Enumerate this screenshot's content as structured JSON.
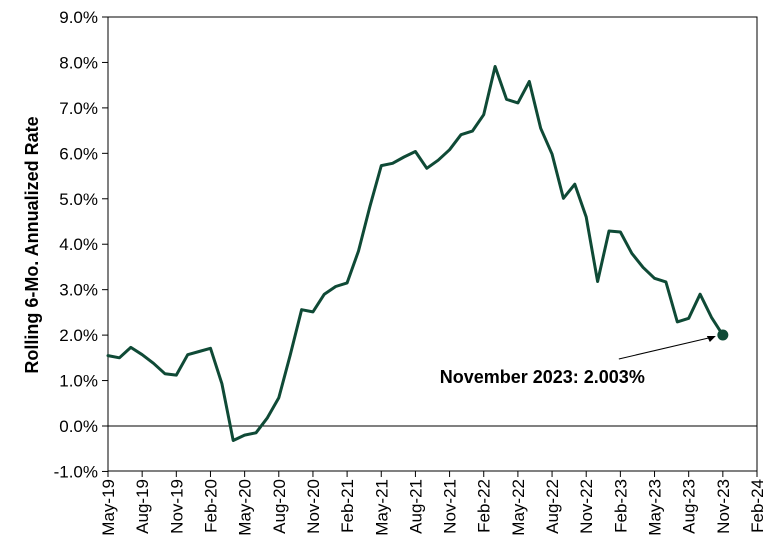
{
  "chart_data": {
    "type": "line",
    "title": "",
    "ylabel": "Rolling 6-Mo. Annualized Rate",
    "xlabel": "",
    "ylim": [
      -1.0,
      9.0
    ],
    "yticks": [
      -1.0,
      0.0,
      1.0,
      2.0,
      3.0,
      4.0,
      5.0,
      6.0,
      7.0,
      8.0,
      9.0
    ],
    "ytick_labels": [
      "-1.0%",
      "0.0%",
      "1.0%",
      "2.0%",
      "3.0%",
      "4.0%",
      "5.0%",
      "6.0%",
      "7.0%",
      "8.0%",
      "9.0%"
    ],
    "xlim": [
      "May-19",
      "Feb-24"
    ],
    "xtick_labels": [
      "May-19",
      "Aug-19",
      "Nov-19",
      "Feb-20",
      "May-20",
      "Aug-20",
      "Nov-20",
      "Feb-21",
      "May-21",
      "Aug-21",
      "Nov-21",
      "Feb-22",
      "May-22",
      "Aug-22",
      "Nov-22",
      "Feb-23",
      "May-23",
      "Aug-23",
      "Nov-23",
      "Feb-24"
    ],
    "grid": false,
    "legend": "none",
    "line_color": "#0f4a36",
    "series": [
      {
        "x": [
          "May-19",
          "Jun-19",
          "Jul-19",
          "Aug-19",
          "Sep-19",
          "Oct-19",
          "Nov-19",
          "Dec-19",
          "Jan-20",
          "Feb-20",
          "Mar-20",
          "Apr-20",
          "May-20",
          "Jun-20",
          "Jul-20",
          "Aug-20",
          "Sep-20",
          "Oct-20",
          "Nov-20",
          "Dec-20",
          "Jan-21",
          "Feb-21",
          "Mar-21",
          "Apr-21",
          "May-21",
          "Jun-21",
          "Jul-21",
          "Aug-21",
          "Sep-21",
          "Oct-21",
          "Nov-21",
          "Dec-21",
          "Jan-22",
          "Feb-22",
          "Mar-22",
          "Apr-22",
          "May-22",
          "Jun-22",
          "Jul-22",
          "Aug-22",
          "Sep-22",
          "Oct-22",
          "Nov-22",
          "Dec-22",
          "Jan-23",
          "Feb-23",
          "Mar-23",
          "Apr-23",
          "May-23",
          "Jun-23",
          "Jul-23",
          "Aug-23",
          "Sep-23",
          "Oct-23",
          "Nov-23"
        ],
        "values": [
          1.55,
          1.5,
          1.73,
          1.57,
          1.38,
          1.15,
          1.12,
          1.57,
          1.64,
          1.71,
          0.93,
          -0.32,
          -0.2,
          -0.15,
          0.18,
          0.62,
          1.56,
          2.56,
          2.51,
          2.9,
          3.07,
          3.15,
          3.85,
          4.83,
          5.73,
          5.78,
          5.92,
          6.04,
          5.67,
          5.85,
          6.08,
          6.41,
          6.49,
          6.85,
          7.91,
          7.19,
          7.11,
          7.58,
          6.55,
          5.98,
          5.01,
          5.32,
          4.6,
          3.18,
          4.29,
          4.27,
          3.8,
          3.49,
          3.25,
          3.17,
          2.29,
          2.37,
          2.9,
          2.39,
          2.003
        ]
      }
    ],
    "annotation": {
      "text": "November 2023: 2.003%",
      "x": "Nov-23",
      "y": 2.003
    }
  }
}
